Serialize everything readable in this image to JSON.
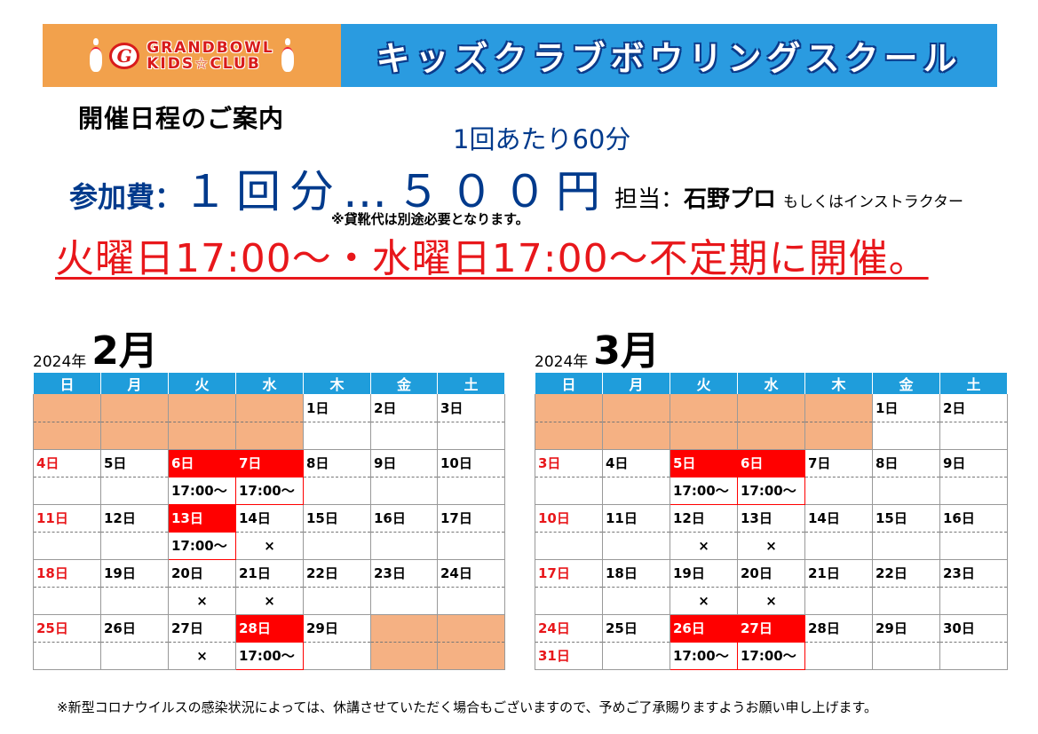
{
  "banner": {
    "logo_line1": "GRANDBOWL",
    "logo_line2": "KIDS☆CLUB",
    "logo_mark": "G",
    "title": "キッズクラブボウリングスクール",
    "colors": {
      "logo_bg": "#f2a14c",
      "title_bg": "#2a9be0"
    }
  },
  "heading": "開催日程のご案内",
  "duration": "1回あたり60分",
  "fee": {
    "label": "参加費：",
    "amount": "１回分…５００円",
    "staff_label": "担当：",
    "staff": "石野プロ",
    "staff_alt": "もしくはインストラクター"
  },
  "shoes_note": "※貸靴代は別途必要となります。",
  "schedule": "火曜日17:00～・水曜日17:00～不定期に開催。",
  "footer": "※新型コロナウイルスの感染状況によっては、休講させていただく場合もございますので、予めご了承賜りますようお願い申し上げます。",
  "weekdays": [
    "日",
    "月",
    "火",
    "水",
    "木",
    "金",
    "土"
  ],
  "calendars": [
    {
      "year": "2024年",
      "month": "2月",
      "weeks": [
        [
          {
            "d": ""
          },
          {
            "d": ""
          },
          {
            "d": ""
          },
          {
            "d": ""
          },
          {
            "d": "1日",
            "i": ""
          },
          {
            "d": "2日",
            "i": ""
          },
          {
            "d": "3日",
            "i": ""
          }
        ],
        [
          {
            "d": "4日",
            "i": ""
          },
          {
            "d": "5日",
            "i": ""
          },
          {
            "d": "6日",
            "i": "17:00～",
            "ev": true
          },
          {
            "d": "7日",
            "i": "17:00～",
            "ev": true
          },
          {
            "d": "8日",
            "i": ""
          },
          {
            "d": "9日",
            "i": ""
          },
          {
            "d": "10日",
            "i": ""
          }
        ],
        [
          {
            "d": "11日",
            "i": ""
          },
          {
            "d": "12日",
            "i": ""
          },
          {
            "d": "13日",
            "i": "17:00～",
            "ev": true
          },
          {
            "d": "14日",
            "i": "×"
          },
          {
            "d": "15日",
            "i": ""
          },
          {
            "d": "16日",
            "i": ""
          },
          {
            "d": "17日",
            "i": ""
          }
        ],
        [
          {
            "d": "18日",
            "i": ""
          },
          {
            "d": "19日",
            "i": ""
          },
          {
            "d": "20日",
            "i": "×"
          },
          {
            "d": "21日",
            "i": "×"
          },
          {
            "d": "22日",
            "i": ""
          },
          {
            "d": "23日",
            "i": ""
          },
          {
            "d": "24日",
            "i": ""
          }
        ],
        [
          {
            "d": "25日",
            "i": ""
          },
          {
            "d": "26日",
            "i": ""
          },
          {
            "d": "27日",
            "i": "×"
          },
          {
            "d": "28日",
            "i": "17:00～",
            "ev": true
          },
          {
            "d": "29日",
            "i": ""
          },
          {
            "d": ""
          },
          {
            "d": ""
          }
        ]
      ]
    },
    {
      "year": "2024年",
      "month": "3月",
      "weeks": [
        [
          {
            "d": ""
          },
          {
            "d": ""
          },
          {
            "d": ""
          },
          {
            "d": ""
          },
          {
            "d": ""
          },
          {
            "d": "1日",
            "i": ""
          },
          {
            "d": "2日",
            "i": ""
          }
        ],
        [
          {
            "d": "3日",
            "i": ""
          },
          {
            "d": "4日",
            "i": ""
          },
          {
            "d": "5日",
            "i": "17:00～",
            "ev": true
          },
          {
            "d": "6日",
            "i": "17:00～",
            "ev": true
          },
          {
            "d": "7日",
            "i": ""
          },
          {
            "d": "8日",
            "i": ""
          },
          {
            "d": "9日",
            "i": ""
          }
        ],
        [
          {
            "d": "10日",
            "i": ""
          },
          {
            "d": "11日",
            "i": ""
          },
          {
            "d": "12日",
            "i": "×"
          },
          {
            "d": "13日",
            "i": "×"
          },
          {
            "d": "14日",
            "i": ""
          },
          {
            "d": "15日",
            "i": ""
          },
          {
            "d": "16日",
            "i": ""
          }
        ],
        [
          {
            "d": "17日",
            "i": ""
          },
          {
            "d": "18日",
            "i": ""
          },
          {
            "d": "19日",
            "i": "×"
          },
          {
            "d": "20日",
            "i": "×"
          },
          {
            "d": "21日",
            "i": ""
          },
          {
            "d": "22日",
            "i": ""
          },
          {
            "d": "23日",
            "i": ""
          }
        ],
        [
          {
            "d": "24日",
            "i": "31日"
          },
          {
            "d": "25日",
            "i": ""
          },
          {
            "d": "26日",
            "i": "17:00～",
            "ev": true
          },
          {
            "d": "27日",
            "i": "17:00～",
            "ev": true
          },
          {
            "d": "28日",
            "i": ""
          },
          {
            "d": "29日",
            "i": ""
          },
          {
            "d": "30日",
            "i": ""
          }
        ]
      ]
    }
  ]
}
